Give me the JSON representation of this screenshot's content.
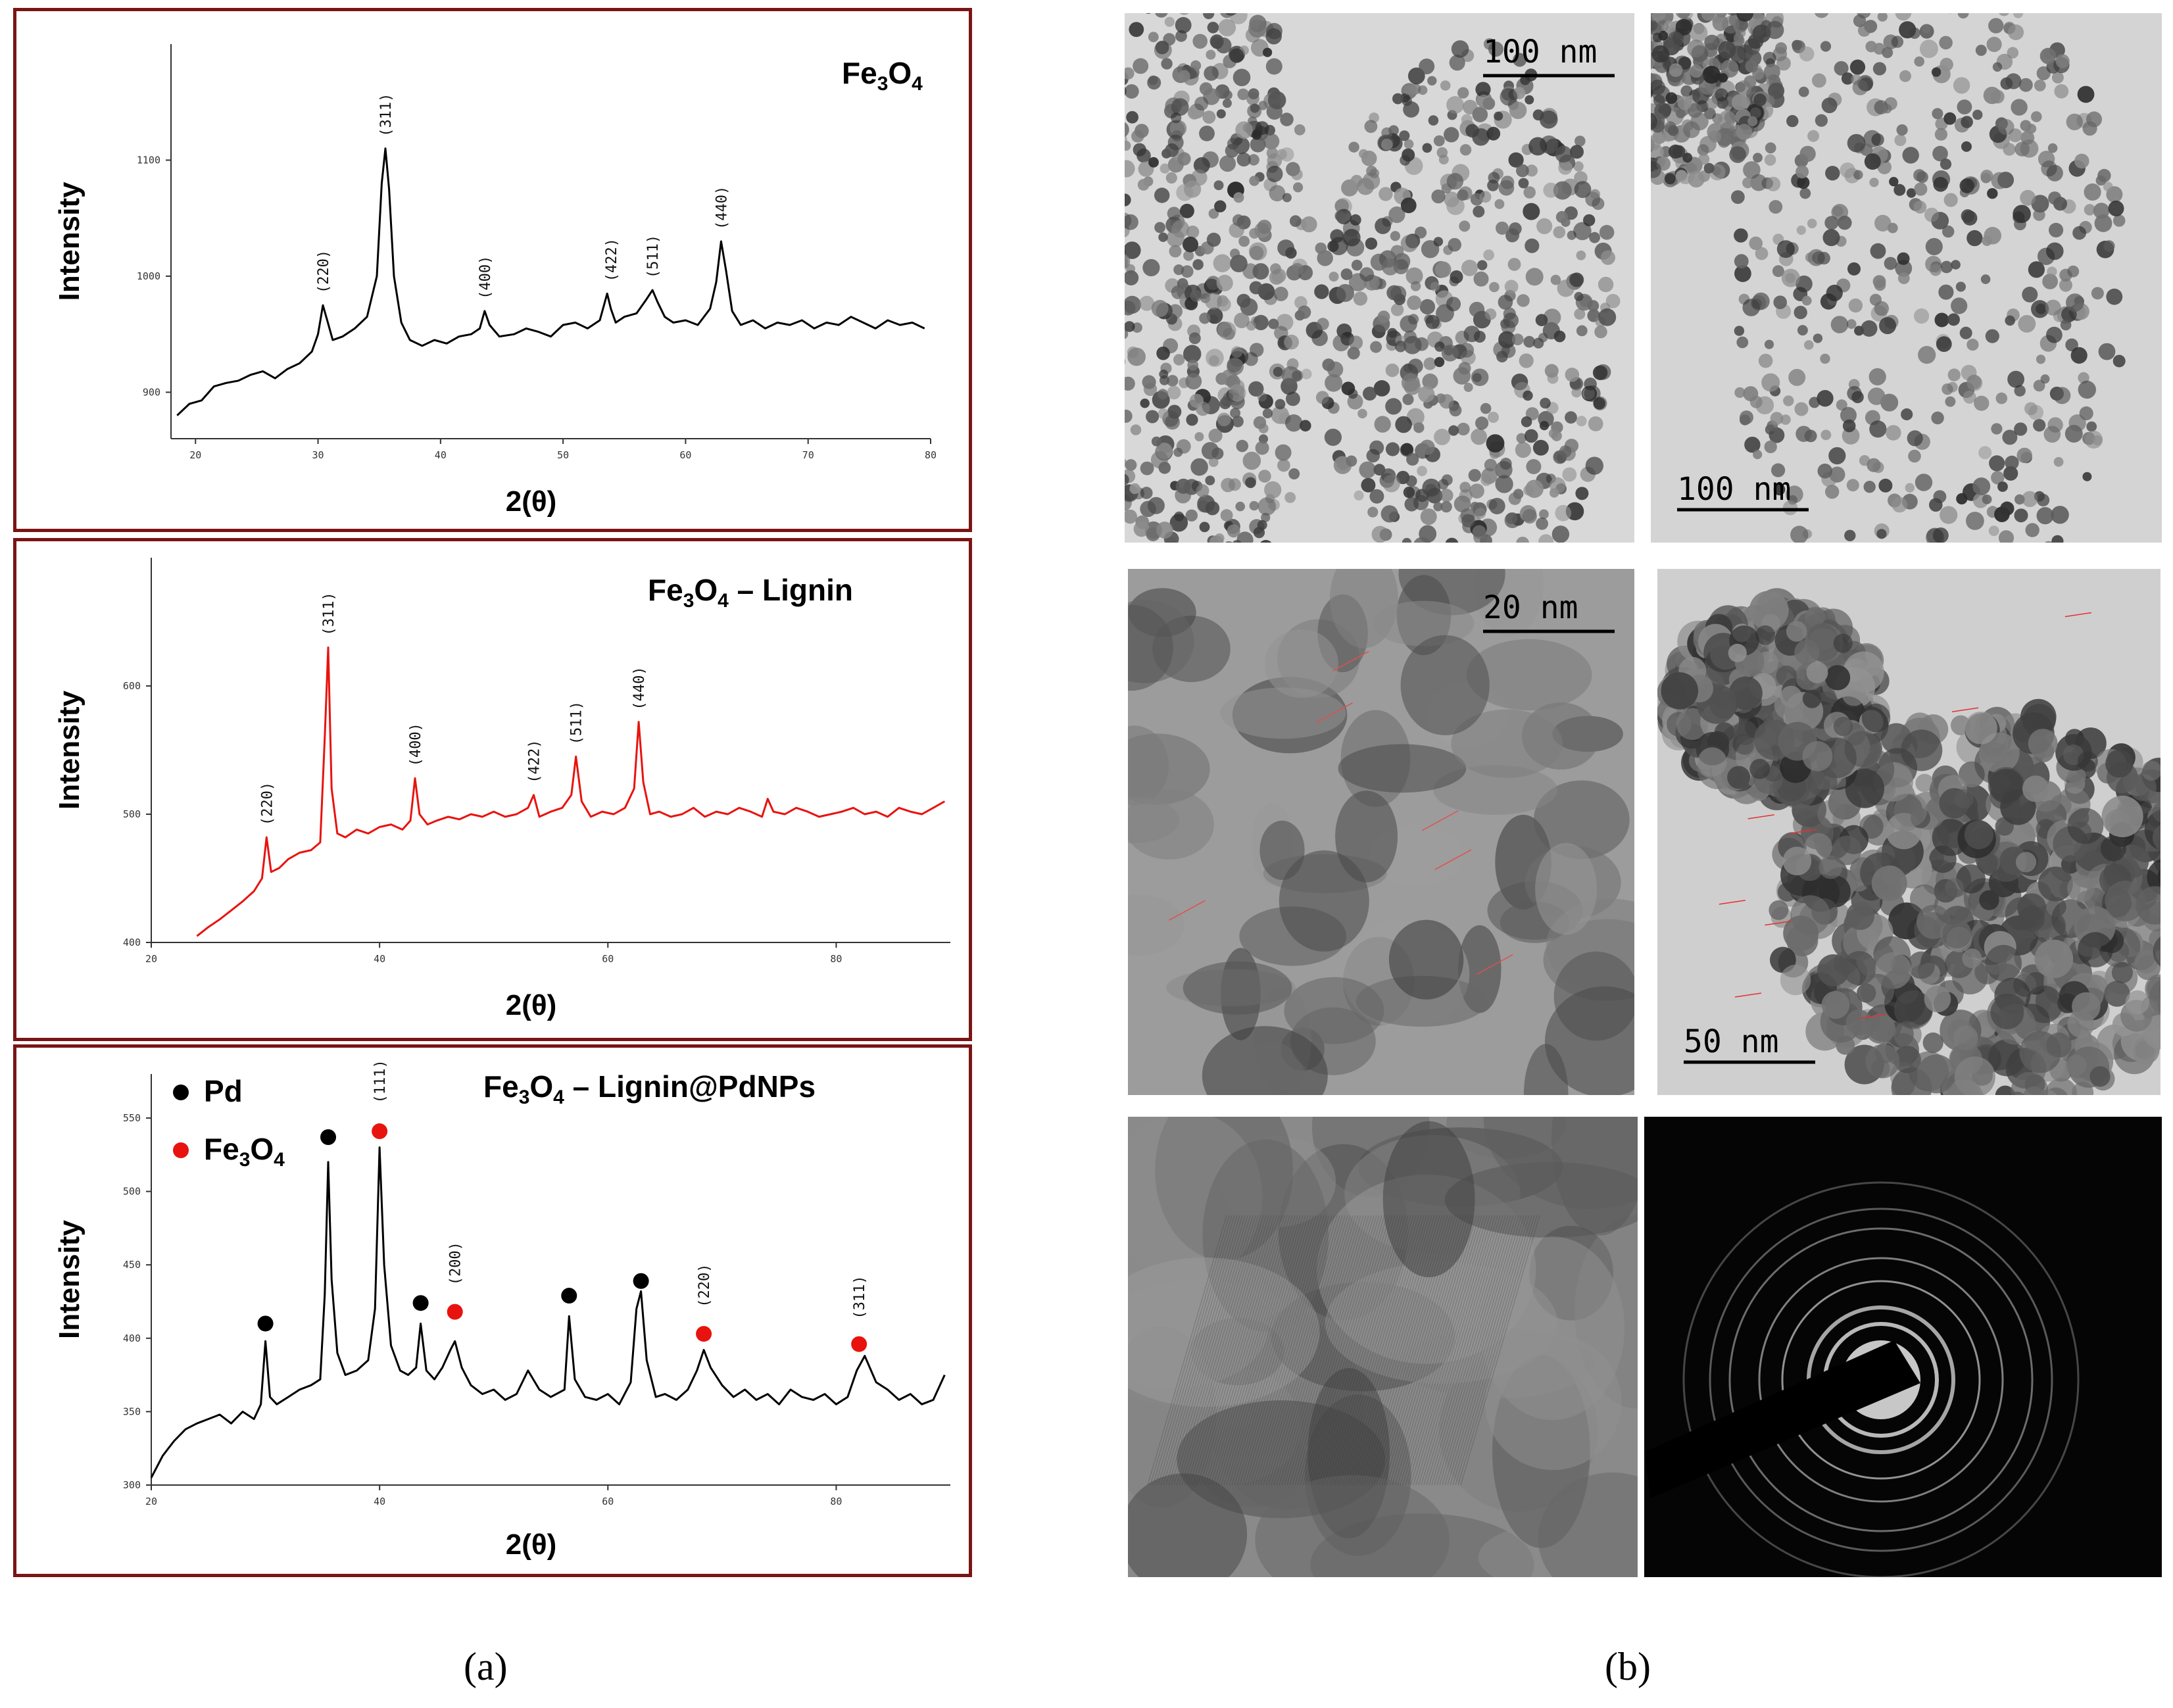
{
  "labels": {
    "a": "(a)",
    "b": "(b)"
  },
  "colors": {
    "frame": "#7a1515",
    "black_series": "#000000",
    "red_series": "#e8130f",
    "pd_marker": "#000000",
    "fe3o4_marker": "#e8130f"
  },
  "chart_data": [
    {
      "type": "line",
      "title": "Fe3O4",
      "title_parts": {
        "base": "Fe",
        "sub1": "3",
        "mid": "O",
        "sub2": "4",
        "suffix": ""
      },
      "xlabel": "2(θ)",
      "ylabel": "Intensity",
      "xlim": [
        18,
        80
      ],
      "ylim": [
        860,
        1200
      ],
      "xticks": [
        20,
        30,
        40,
        50,
        60,
        70,
        80
      ],
      "xtick_labels": [
        "20",
        "30",
        "40",
        "50",
        "60",
        "70",
        "80"
      ],
      "yticks": [
        900,
        1000,
        1100
      ],
      "ytick_labels": [
        "900",
        "1000",
        "1100"
      ],
      "series": [
        {
          "color": "#000000",
          "x": [
            18.5,
            19.5,
            20.5,
            21.5,
            22.5,
            23.5,
            24.5,
            25.5,
            26.5,
            27.5,
            28.5,
            29.5,
            30.0,
            30.4,
            30.8,
            31.2,
            32.0,
            33.0,
            34.0,
            34.8,
            35.2,
            35.5,
            35.8,
            36.2,
            36.8,
            37.5,
            38.5,
            39.5,
            40.5,
            41.5,
            42.5,
            43.2,
            43.6,
            44.0,
            44.8,
            46.0,
            47.0,
            48.0,
            49.0,
            50.0,
            51.0,
            52.0,
            53.0,
            53.6,
            53.9,
            54.3,
            55.0,
            56.0,
            56.8,
            57.3,
            57.7,
            58.3,
            59.0,
            60.0,
            61.0,
            62.0,
            62.5,
            62.9,
            63.3,
            63.8,
            64.5,
            65.5,
            66.5,
            67.5,
            68.5,
            69.5,
            70.5,
            71.5,
            72.5,
            73.5,
            74.5,
            75.5,
            76.5,
            77.5,
            78.5,
            79.5
          ],
          "y": [
            880,
            890,
            893,
            905,
            908,
            910,
            915,
            918,
            912,
            920,
            925,
            935,
            950,
            975,
            960,
            945,
            948,
            955,
            965,
            1000,
            1080,
            1110,
            1075,
            1000,
            960,
            945,
            940,
            945,
            942,
            948,
            950,
            955,
            970,
            958,
            948,
            950,
            955,
            952,
            948,
            958,
            960,
            955,
            962,
            985,
            972,
            960,
            965,
            968,
            980,
            988,
            978,
            965,
            960,
            962,
            958,
            972,
            995,
            1030,
            1005,
            970,
            958,
            962,
            955,
            960,
            958,
            962,
            955,
            960,
            958,
            965,
            960,
            955,
            962,
            958,
            960,
            955
          ]
        }
      ],
      "peak_labels": [
        {
          "text": "(220)",
          "x": 30.4,
          "y": 975
        },
        {
          "text": "(311)",
          "x": 35.5,
          "y": 1110
        },
        {
          "text": "(400)",
          "x": 43.6,
          "y": 970
        },
        {
          "text": "(422)",
          "x": 53.9,
          "y": 985
        },
        {
          "text": "(511)",
          "x": 57.3,
          "y": 988
        },
        {
          "text": "(440)",
          "x": 62.9,
          "y": 1030
        }
      ]
    },
    {
      "type": "line",
      "title": "Fe3O4 – Lignin",
      "title_parts": {
        "base": "Fe",
        "sub1": "3",
        "mid": "O",
        "sub2": "4",
        "suffix": " – Lignin"
      },
      "xlabel": "2(θ)",
      "ylabel": "Intensity",
      "xlim": [
        20,
        90
      ],
      "ylim": [
        400,
        700
      ],
      "xticks": [
        20,
        40,
        60,
        80
      ],
      "xtick_labels": [
        "20",
        "40",
        "60",
        "80"
      ],
      "yticks": [
        400,
        500,
        600
      ],
      "ytick_labels": [
        "400",
        "500",
        "600"
      ],
      "series": [
        {
          "color": "#e8130f",
          "x": [
            24.0,
            25.0,
            26.0,
            27.0,
            28.0,
            29.0,
            29.7,
            30.1,
            30.5,
            31.2,
            32.0,
            33.0,
            34.0,
            34.8,
            35.2,
            35.5,
            35.8,
            36.3,
            37.0,
            38.0,
            39.0,
            40.0,
            41.0,
            42.0,
            42.7,
            43.1,
            43.5,
            44.2,
            45.0,
            46.0,
            47.0,
            48.0,
            49.0,
            50.0,
            51.0,
            52.0,
            53.0,
            53.5,
            54.0,
            55.0,
            56.0,
            56.8,
            57.2,
            57.7,
            58.5,
            59.5,
            60.5,
            61.5,
            62.3,
            62.7,
            63.1,
            63.7,
            64.5,
            65.5,
            66.5,
            67.5,
            68.5,
            69.5,
            70.5,
            71.5,
            72.5,
            73.5,
            74.0,
            74.5,
            75.5,
            76.5,
            77.5,
            78.5,
            79.5,
            80.5,
            81.5,
            82.5,
            83.5,
            84.5,
            85.5,
            86.5,
            87.5,
            88.5,
            89.5
          ],
          "y": [
            405,
            412,
            418,
            425,
            432,
            440,
            450,
            482,
            455,
            458,
            465,
            470,
            472,
            478,
            560,
            630,
            520,
            485,
            482,
            488,
            485,
            490,
            492,
            488,
            495,
            528,
            500,
            492,
            495,
            498,
            496,
            500,
            498,
            502,
            498,
            500,
            505,
            515,
            498,
            502,
            505,
            515,
            545,
            510,
            498,
            502,
            500,
            505,
            520,
            572,
            525,
            500,
            502,
            498,
            500,
            505,
            498,
            502,
            500,
            505,
            502,
            498,
            512,
            502,
            500,
            505,
            502,
            498,
            500,
            502,
            505,
            500,
            502,
            498,
            505,
            502,
            500,
            505,
            510
          ]
        }
      ],
      "peak_labels": [
        {
          "text": "(220)",
          "x": 30.1,
          "y": 482
        },
        {
          "text": "(311)",
          "x": 35.5,
          "y": 630
        },
        {
          "text": "(400)",
          "x": 43.1,
          "y": 528
        },
        {
          "text": "(422)",
          "x": 53.5,
          "y": 515
        },
        {
          "text": "(511)",
          "x": 57.2,
          "y": 545
        },
        {
          "text": "(440)",
          "x": 62.7,
          "y": 572
        }
      ]
    },
    {
      "type": "line",
      "title": "Fe3O4 – Lignin@PdNPs",
      "title_parts": {
        "base": "Fe",
        "sub1": "3",
        "mid": "O",
        "sub2": "4",
        "suffix": " – Lignin@PdNPs"
      },
      "xlabel": "2(θ)",
      "ylabel": "Intensity",
      "xlim": [
        20,
        90
      ],
      "ylim": [
        300,
        580
      ],
      "xticks": [
        20,
        40,
        60,
        80
      ],
      "xtick_labels": [
        "20",
        "40",
        "60",
        "80"
      ],
      "yticks": [
        300,
        350,
        400,
        450,
        500,
        550
      ],
      "ytick_labels": [
        "300",
        "350",
        "400",
        "450",
        "500",
        "550"
      ],
      "legend": [
        {
          "label": "Pd",
          "color": "#000000"
        },
        {
          "label_parts": {
            "base": "Fe",
            "sub1": "3",
            "mid": "O",
            "sub2": "4"
          },
          "label": "Fe3O4",
          "color": "#e8130f"
        }
      ],
      "series": [
        {
          "color": "#000000",
          "x": [
            20.0,
            21.0,
            22.0,
            23.0,
            24.0,
            25.0,
            26.0,
            27.0,
            28.0,
            29.0,
            29.6,
            30.0,
            30.4,
            31.0,
            32.0,
            33.0,
            34.0,
            34.8,
            35.2,
            35.5,
            35.8,
            36.3,
            37.0,
            38.0,
            39.0,
            39.6,
            40.0,
            40.4,
            41.0,
            41.8,
            42.5,
            43.2,
            43.6,
            44.1,
            44.8,
            45.5,
            46.2,
            46.6,
            47.2,
            48.0,
            49.0,
            50.0,
            51.0,
            52.0,
            53.0,
            54.0,
            55.0,
            56.2,
            56.6,
            57.1,
            58.0,
            59.0,
            60.0,
            61.0,
            62.0,
            62.5,
            62.9,
            63.4,
            64.2,
            65.0,
            66.0,
            67.0,
            67.8,
            68.4,
            69.0,
            70.0,
            71.0,
            72.0,
            73.0,
            74.0,
            75.0,
            76.0,
            77.0,
            78.0,
            79.0,
            80.0,
            81.0,
            81.8,
            82.5,
            83.5,
            84.5,
            85.5,
            86.5,
            87.5,
            88.5,
            89.5
          ],
          "y": [
            305,
            320,
            330,
            338,
            342,
            345,
            348,
            342,
            350,
            345,
            355,
            398,
            360,
            355,
            360,
            365,
            368,
            372,
            430,
            520,
            440,
            390,
            375,
            378,
            385,
            420,
            530,
            450,
            395,
            378,
            375,
            380,
            410,
            378,
            372,
            380,
            392,
            398,
            380,
            368,
            362,
            365,
            358,
            362,
            378,
            365,
            360,
            365,
            415,
            372,
            360,
            358,
            362,
            355,
            370,
            420,
            432,
            385,
            360,
            362,
            358,
            365,
            378,
            392,
            380,
            368,
            360,
            365,
            358,
            362,
            355,
            365,
            360,
            358,
            362,
            355,
            360,
            378,
            388,
            370,
            365,
            358,
            362,
            355,
            358,
            375
          ]
        }
      ],
      "markers": [
        {
          "series": "Pd",
          "x": 30.0,
          "y": 410
        },
        {
          "series": "Pd",
          "x": 35.5,
          "y": 537
        },
        {
          "series": "Pd",
          "x": 43.6,
          "y": 424
        },
        {
          "series": "Pd",
          "x": 56.6,
          "y": 429
        },
        {
          "series": "Pd",
          "x": 62.9,
          "y": 439
        },
        {
          "series": "Fe3O4",
          "x": 40.0,
          "y": 541
        },
        {
          "series": "Fe3O4",
          "x": 46.6,
          "y": 418
        },
        {
          "series": "Fe3O4",
          "x": 68.4,
          "y": 403
        },
        {
          "series": "Fe3O4",
          "x": 82.0,
          "y": 396
        }
      ],
      "peak_labels": [
        {
          "text": "(111)",
          "x": 40.0,
          "y": 552
        },
        {
          "text": "(200)",
          "x": 46.6,
          "y": 428
        },
        {
          "text": "(220)",
          "x": 68.4,
          "y": 413
        },
        {
          "text": "(311)",
          "x": 82.0,
          "y": 405
        }
      ]
    }
  ],
  "tem_images": [
    {
      "name": "tem-image-1",
      "style": "particle-cluster",
      "scale_bar": "100 nm",
      "scale_pos": "top-right"
    },
    {
      "name": "tem-image-2",
      "style": "particle-column",
      "scale_bar": "100 nm",
      "scale_pos": "bottom-left"
    },
    {
      "name": "tem-image-3",
      "style": "hrtem-lattice",
      "scale_bar": "20 nm",
      "scale_pos": "top-right"
    },
    {
      "name": "tem-image-4",
      "style": "particle-measured",
      "scale_bar": "50 nm",
      "scale_pos": "bottom-left"
    },
    {
      "name": "tem-image-5",
      "style": "lattice-fringes",
      "scale_bar": "",
      "scale_pos": "none"
    },
    {
      "name": "tem-image-6",
      "style": "saed-rings",
      "scale_bar": "",
      "scale_pos": "none"
    }
  ]
}
